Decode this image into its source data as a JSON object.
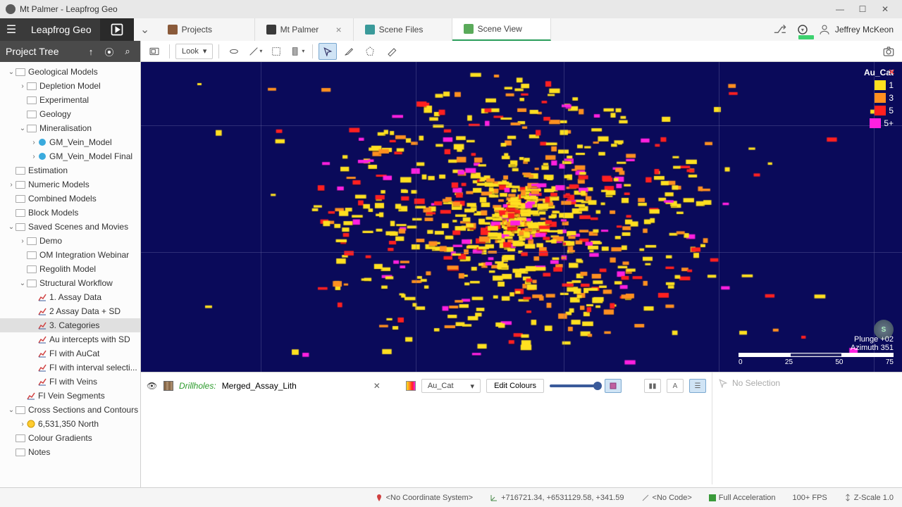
{
  "title": "Mt Palmer - Leapfrog Geo",
  "app_name": "Leapfrog Geo",
  "tabs": [
    {
      "label": "Projects",
      "icon_color": "#8a5a3a"
    },
    {
      "label": "Mt Palmer",
      "icon_color": "#3a3a3a",
      "closable": true
    },
    {
      "label": "Scene Files",
      "icon_color": "#3a9a9a"
    },
    {
      "label": "Scene View",
      "icon_color": "#5aaa5a",
      "active": true
    }
  ],
  "user": "Jeffrey McKeon",
  "tree_header": "Project Tree",
  "tree": [
    {
      "label": "Geological Models",
      "indent": 0,
      "expanded": true,
      "folder": true
    },
    {
      "label": "Depletion Model",
      "indent": 1,
      "chev": true,
      "folder": true
    },
    {
      "label": "Experimental",
      "indent": 1,
      "folder": true
    },
    {
      "label": "Geology",
      "indent": 1,
      "folder": true
    },
    {
      "label": "Mineralisation",
      "indent": 1,
      "expanded": true,
      "folder": true
    },
    {
      "label": "GM_Vein_Model",
      "indent": 2,
      "chev": true,
      "icon": "gm"
    },
    {
      "label": "GM_Vein_Model Final",
      "indent": 2,
      "chev": true,
      "icon": "gm"
    },
    {
      "label": "Estimation",
      "indent": 0,
      "folder": true
    },
    {
      "label": "Numeric Models",
      "indent": 0,
      "chev": true,
      "folder": true
    },
    {
      "label": "Combined Models",
      "indent": 0,
      "folder": true
    },
    {
      "label": "Block Models",
      "indent": 0,
      "folder": true
    },
    {
      "label": "Saved Scenes and Movies",
      "indent": 0,
      "expanded": true,
      "folder": true
    },
    {
      "label": "Demo",
      "indent": 1,
      "chev": true,
      "folder": true
    },
    {
      "label": "OM Integration Webinar",
      "indent": 1,
      "folder": true
    },
    {
      "label": "Regolith Model",
      "indent": 1,
      "folder": true
    },
    {
      "label": "Structural Workflow",
      "indent": 1,
      "expanded": true,
      "folder": true
    },
    {
      "label": "1. Assay Data",
      "indent": 2,
      "icon": "chart"
    },
    {
      "label": "2 Assay Data + SD",
      "indent": 2,
      "icon": "chart"
    },
    {
      "label": "3. Categories",
      "indent": 2,
      "icon": "chart",
      "selected": true
    },
    {
      "label": "Au intercepts with SD",
      "indent": 2,
      "icon": "chart"
    },
    {
      "label": "FI with AuCat",
      "indent": 2,
      "icon": "chart"
    },
    {
      "label": "FI with interval selecti...",
      "indent": 2,
      "icon": "chart"
    },
    {
      "label": "FI with Veins",
      "indent": 2,
      "icon": "chart"
    },
    {
      "label": "FI Vein Segments",
      "indent": 1,
      "icon": "chart"
    },
    {
      "label": "Cross Sections and Contours",
      "indent": 0,
      "expanded": true,
      "folder": true
    },
    {
      "label": "6,531,350 North",
      "indent": 1,
      "chev": true,
      "icon": "star"
    },
    {
      "label": "Colour Gradients",
      "indent": 0,
      "folder": true
    },
    {
      "label": "Notes",
      "indent": 0,
      "folder": true
    }
  ],
  "toolbar": {
    "look": "Look"
  },
  "viewport": {
    "background": "#0a0a5a",
    "legend_title": "Au_Cat",
    "legend": [
      {
        "label": "1",
        "color": "#ffe020"
      },
      {
        "label": "3",
        "color": "#ff9020"
      },
      {
        "label": "5",
        "color": "#ff2020"
      },
      {
        "label": "5+",
        "color": "#ff20e0"
      }
    ],
    "plunge": "Plunge +02",
    "azimuth": "Azimuth 351",
    "scale_ticks": [
      "0",
      "25",
      "50",
      "75"
    ],
    "scale_colors": [
      "#ffffff",
      "#2a2a6a",
      "#ffffff"
    ],
    "grid_vlines": [
      170,
      390,
      600,
      820,
      1040
    ],
    "grid_hlines": [
      90,
      270
    ]
  },
  "inspector": {
    "drillholes_label": "Drillholes:",
    "drillholes_value": "Merged_Assay_Lith",
    "attr": "Au_Cat",
    "edit_colours": "Edit Colours",
    "no_selection": "No Selection"
  },
  "status": {
    "crs": "<No Coordinate System>",
    "coords": "+716721.34, +6531129.58, +341.59",
    "code": "<No Code>",
    "accel": "Full Acceleration",
    "fps": "100+ FPS",
    "zscale": "Z-Scale 1.0"
  }
}
